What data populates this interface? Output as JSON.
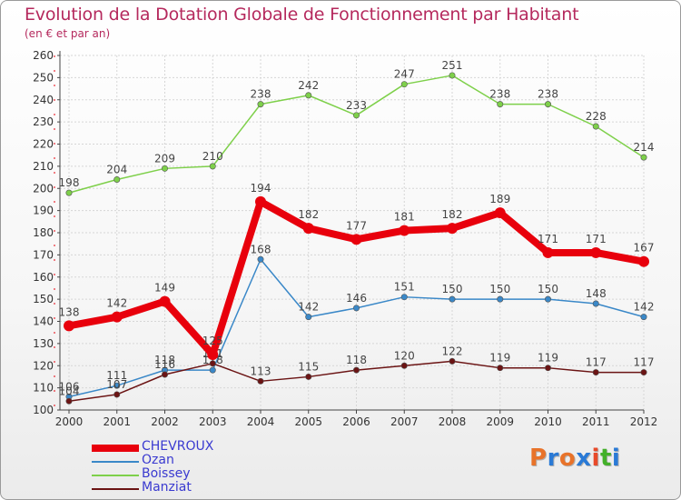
{
  "title": "Evolution de la Dotation Globale de Fonctionnement par Habitant",
  "subtitle": "(en € et par an)",
  "logo": {
    "text": "Proxiti",
    "colors": [
      "#e8732a",
      "#2a7ad6",
      "#e8732a",
      "#2a7ad6",
      "#e84a2a",
      "#43b02a",
      "#2a7ad6"
    ]
  },
  "chart_data": {
    "type": "line",
    "x": [
      "2000",
      "2001",
      "2002",
      "2003",
      "2004",
      "2005",
      "2006",
      "2007",
      "2008",
      "2009",
      "2010",
      "2011",
      "2012"
    ],
    "ylim": [
      100,
      260
    ],
    "yticks": [
      100,
      110,
      120,
      130,
      140,
      150,
      160,
      170,
      180,
      190,
      200,
      210,
      220,
      230,
      240,
      250,
      260
    ],
    "grid": true,
    "legend_position": "bottom-left",
    "series": [
      {
        "name": "CHEVROUX",
        "color": "#e8000c",
        "values": [
          138,
          142,
          149,
          125,
          194,
          182,
          177,
          181,
          182,
          189,
          171,
          171,
          167
        ],
        "bold": true
      },
      {
        "name": "Ozan",
        "color": "#3a88c8",
        "values": [
          106,
          111,
          118,
          118,
          168,
          142,
          146,
          151,
          150,
          150,
          150,
          148,
          142
        ]
      },
      {
        "name": "Boissey",
        "color": "#7ed04a",
        "values": [
          198,
          204,
          209,
          210,
          238,
          242,
          233,
          247,
          251,
          238,
          238,
          228,
          214
        ]
      },
      {
        "name": "Manziat",
        "color": "#6b1414",
        "values": [
          104,
          107,
          116,
          121,
          113,
          115,
          118,
          120,
          122,
          119,
          119,
          117,
          117
        ]
      }
    ]
  }
}
